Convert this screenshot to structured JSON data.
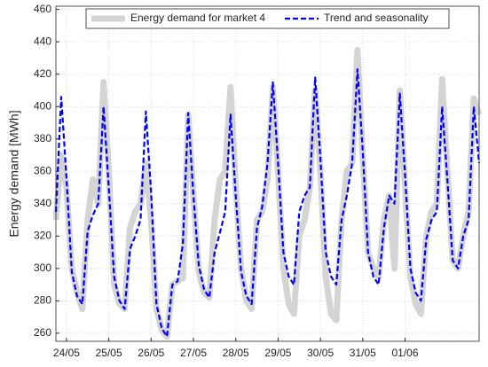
{
  "chart_data": {
    "type": "line",
    "ylabel": "Energy demand [MWh]",
    "categories": [
      null,
      null,
      "24/05",
      null,
      null,
      null,
      null,
      null,
      null,
      null,
      "25/05",
      null,
      null,
      null,
      null,
      null,
      null,
      null,
      "26/05",
      null,
      null,
      null,
      null,
      null,
      null,
      null,
      "27/05",
      null,
      null,
      null,
      null,
      null,
      null,
      null,
      "28/05",
      null,
      null,
      null,
      null,
      null,
      null,
      null,
      "29/05",
      null,
      null,
      null,
      null,
      null,
      null,
      null,
      "30/05",
      null,
      null,
      null,
      null,
      null,
      null,
      null,
      "31/05",
      null,
      null,
      null,
      null,
      null,
      null,
      null,
      "01/06",
      null,
      null,
      null,
      null,
      null,
      null,
      null,
      null,
      null,
      null,
      null,
      null,
      null,
      null
    ],
    "series": [
      {
        "name": "Energy demand for market 4",
        "color": "#d4d4d4",
        "width": 7,
        "dashed": false,
        "values": [
          330,
          370,
          350,
          300,
          285,
          275,
          330,
          355,
          340,
          415,
          360,
          290,
          278,
          275,
          325,
          335,
          340,
          365,
          330,
          275,
          262,
          258,
          290,
          292,
          294,
          395,
          345,
          298,
          285,
          282,
          330,
          355,
          360,
          412,
          350,
          300,
          280,
          275,
          330,
          335,
          355,
          412,
          360,
          300,
          278,
          272,
          320,
          330,
          350,
          410,
          360,
          295,
          272,
          268,
          330,
          360,
          365,
          435,
          370,
          310,
          300,
          295,
          330,
          345,
          300,
          410,
          350,
          295,
          278,
          272,
          320,
          335,
          340,
          417,
          360,
          305,
          300,
          320,
          335,
          405,
          395
        ]
      },
      {
        "name": "Trend and seasonality",
        "color": "#0000ff",
        "width": 2.2,
        "dashed": true,
        "values": [
          335,
          406,
          356,
          298,
          283,
          278,
          323,
          333,
          340,
          400,
          350,
          295,
          280,
          275,
          312,
          320,
          330,
          397,
          347,
          278,
          263,
          258,
          290,
          292,
          315,
          396,
          345,
          302,
          287,
          282,
          310,
          322,
          335,
          395,
          345,
          298,
          283,
          278,
          325,
          338,
          365,
          415,
          365,
          310,
          295,
          290,
          335,
          345,
          350,
          418,
          368,
          310,
          295,
          290,
          330,
          345,
          365,
          423,
          373,
          310,
          295,
          290,
          325,
          345,
          340,
          408,
          358,
          300,
          285,
          280,
          318,
          330,
          335,
          400,
          355,
          305,
          300,
          320,
          330,
          400,
          365
        ]
      }
    ],
    "ylim": [
      255,
      462
    ],
    "yticks": [
      260,
      280,
      300,
      320,
      340,
      360,
      380,
      400,
      420,
      440,
      460
    ],
    "grid": true,
    "legend": "north"
  }
}
